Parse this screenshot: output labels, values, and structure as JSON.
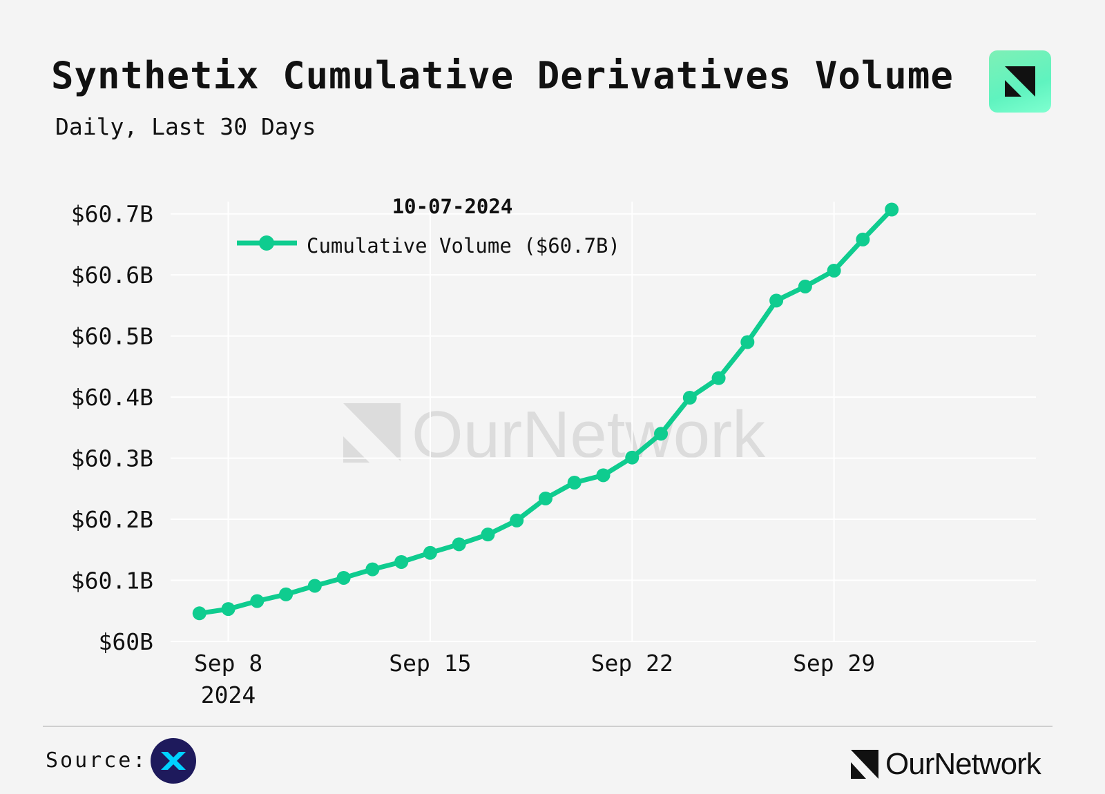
{
  "header": {
    "title": "Synthetix Cumulative Derivatives Volume",
    "subtitle": "Daily, Last 30 Days"
  },
  "footer": {
    "source_label": "Source:",
    "brand": "OurNetwork"
  },
  "watermark": "OurNetwork",
  "colors": {
    "line": "#0fcc8f",
    "background": "#f4f4f4",
    "grid": "#ffffff",
    "text": "#111111",
    "watermark": "#dcdcdc",
    "snx_badge": "#1e1a5c",
    "snx_mark": "#00d1ff"
  },
  "chart_data": {
    "type": "line",
    "title": "Synthetix Cumulative Derivatives Volume",
    "hover_date": "10-07-2024",
    "ylim": [
      60.0,
      60.72
    ],
    "y_ticks": [
      60.0,
      60.1,
      60.2,
      60.3,
      60.4,
      60.5,
      60.6,
      60.7
    ],
    "y_tick_labels": [
      "$60B",
      "$60.1B",
      "$60.2B",
      "$60.3B",
      "$60.4B",
      "$60.5B",
      "$60.6B",
      "$60.7B"
    ],
    "x_range": [
      6,
      36
    ],
    "x_ticks": [
      8,
      15,
      22,
      29
    ],
    "x_tick_labels": [
      "Sep 8",
      "Sep 15",
      "Sep 22",
      "Sep 29"
    ],
    "x_tick_sublabels": [
      "2024",
      "",
      "",
      ""
    ],
    "grid": true,
    "legend_position": "top-left",
    "series": [
      {
        "name": "Cumulative Volume ($60.7B)",
        "x": [
          7,
          8,
          9,
          10,
          11,
          12,
          13,
          14,
          15,
          16,
          17,
          18,
          19,
          20,
          21,
          22,
          23,
          24,
          25,
          26,
          27,
          28,
          29,
          30,
          31
        ],
        "values": [
          60.046,
          60.053,
          60.066,
          60.077,
          60.091,
          60.104,
          60.118,
          60.13,
          60.145,
          60.159,
          60.175,
          60.198,
          60.234,
          60.26,
          60.272,
          60.301,
          60.34,
          60.399,
          60.431,
          60.49,
          60.558,
          60.581,
          60.607,
          60.658,
          60.707
        ]
      }
    ]
  }
}
